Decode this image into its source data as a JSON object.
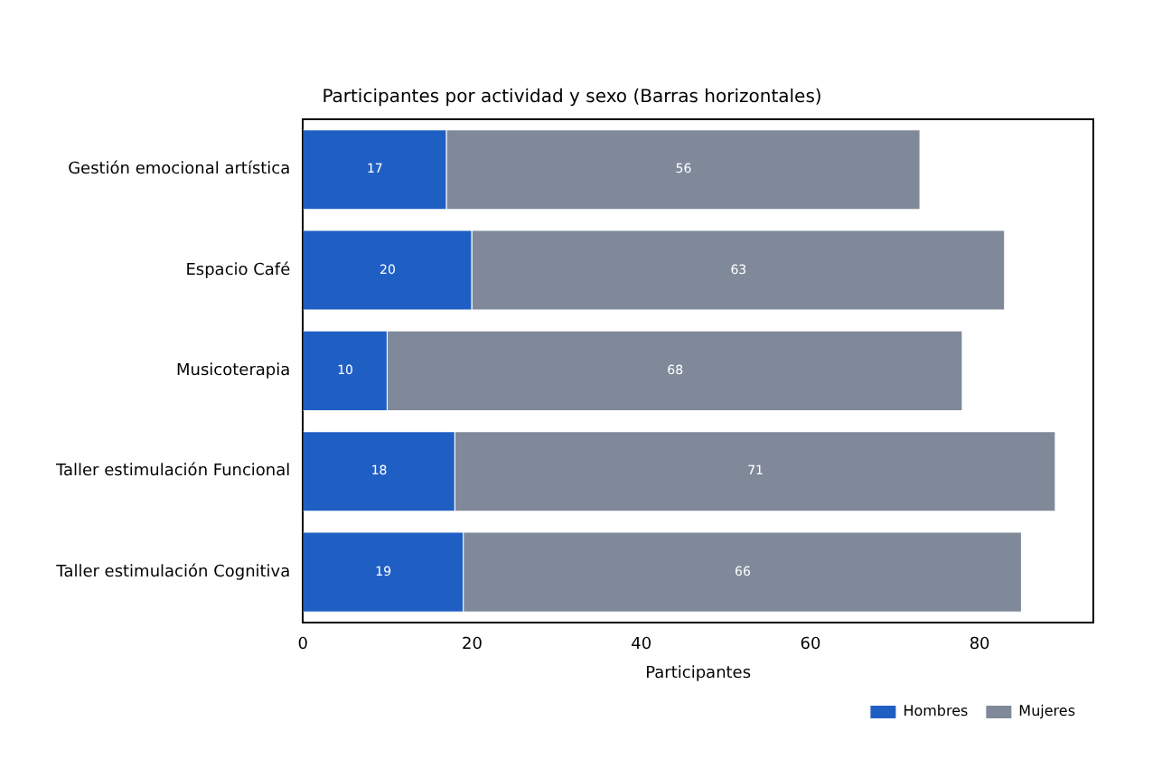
{
  "chart_data": {
    "type": "bar",
    "title": "Participantes por actividad y sexo (Barras horizontales)",
    "xlabel": "Participantes",
    "orientation": "horizontal",
    "stacked": true,
    "categories": [
      "Gestión emocional artística",
      "Espacio Café",
      "Musicoterapia",
      "Taller estimulación Funcional",
      "Taller estimulación Cognitiva"
    ],
    "series": [
      {
        "name": "Hombres",
        "color": "#1f5fc4",
        "values": [
          17,
          20,
          10,
          18,
          19
        ]
      },
      {
        "name": "Mujeres",
        "color": "#7f8999",
        "values": [
          56,
          63,
          68,
          71,
          66
        ]
      }
    ],
    "xlim": [
      0,
      93.45
    ],
    "xticks": [
      0,
      20,
      40,
      60,
      80
    ],
    "data_labels": true,
    "legend": "bottom right",
    "grid": false
  }
}
